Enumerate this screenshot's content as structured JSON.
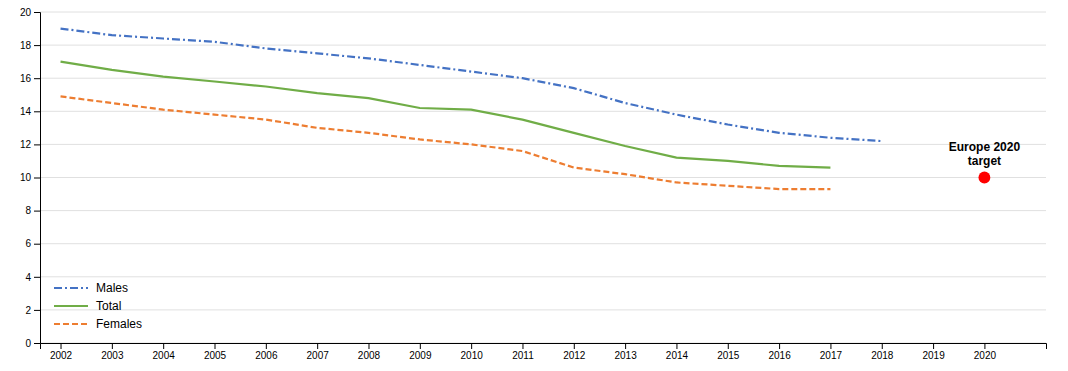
{
  "chart_data": {
    "type": "line",
    "x": [
      2002,
      2003,
      2004,
      2005,
      2006,
      2007,
      2008,
      2009,
      2010,
      2011,
      2012,
      2013,
      2014,
      2015,
      2016,
      2017,
      2018
    ],
    "series": [
      {
        "name": "Males",
        "color": "#4472C4",
        "line_style": "dash-dot",
        "values": [
          19.0,
          18.6,
          18.4,
          18.2,
          17.8,
          17.5,
          17.2,
          16.8,
          16.4,
          16.0,
          15.4,
          14.5,
          13.8,
          13.2,
          12.7,
          12.4,
          12.2
        ]
      },
      {
        "name": "Total",
        "color": "#70AD47",
        "line_style": "solid",
        "values": [
          17.0,
          16.5,
          16.1,
          15.8,
          15.5,
          15.1,
          14.8,
          14.2,
          14.1,
          13.5,
          12.7,
          11.9,
          11.2,
          11.0,
          10.7,
          10.6,
          null
        ]
      },
      {
        "name": "Females",
        "color": "#ED7D31",
        "line_style": "dashed",
        "values": [
          14.9,
          14.5,
          14.1,
          13.8,
          13.5,
          13.0,
          12.7,
          12.3,
          12.0,
          11.6,
          10.6,
          10.2,
          9.7,
          9.5,
          9.3,
          9.3,
          null
        ]
      }
    ],
    "target": {
      "x": 2020,
      "y": 10.0,
      "color": "#FF0000",
      "marker": "circle",
      "label": [
        "Europe 2020",
        "target"
      ]
    },
    "xlim": [
      2001.6,
      2021.2
    ],
    "xticks": [
      2002,
      2003,
      2004,
      2005,
      2006,
      2007,
      2008,
      2009,
      2010,
      2011,
      2012,
      2013,
      2014,
      2015,
      2016,
      2017,
      2018,
      2019,
      2020
    ],
    "ylim": [
      0,
      20
    ],
    "yticks": [
      0,
      2,
      4,
      6,
      8,
      10,
      12,
      14,
      16,
      18,
      20
    ],
    "grid": true,
    "legend": "lower left"
  }
}
